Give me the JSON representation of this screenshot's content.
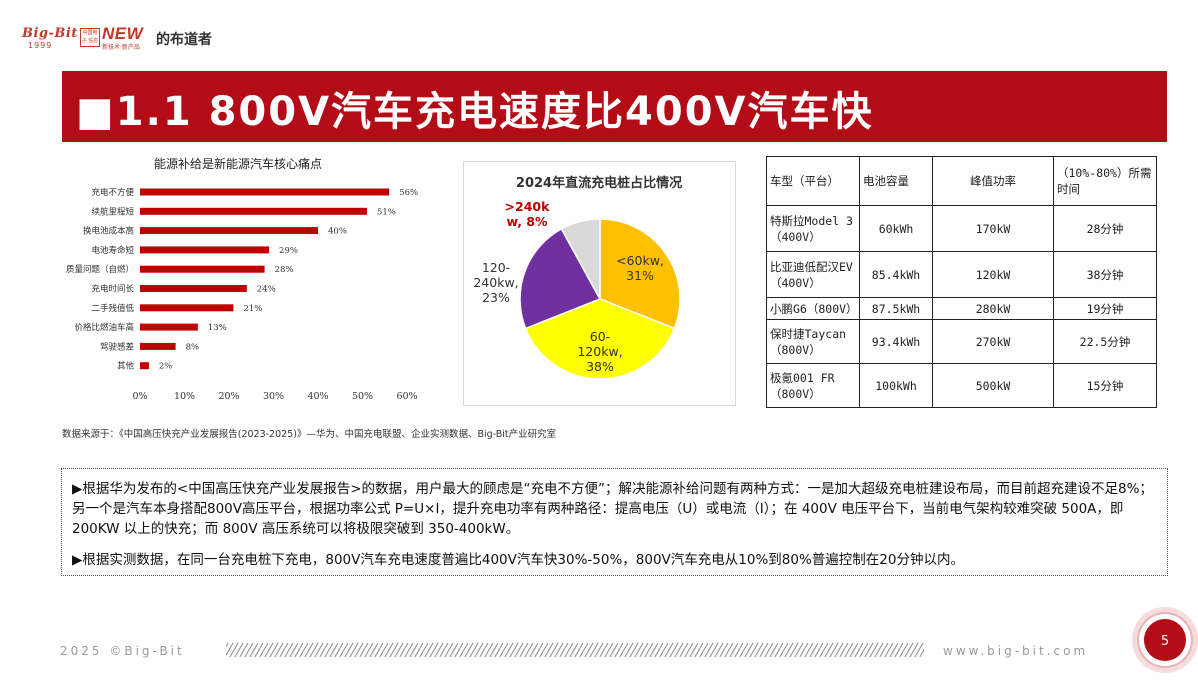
{
  "logo": {
    "brand": "Big-Bit",
    "year": "1999",
    "box_text": "中国电子 信息业",
    "new_text": "NEW",
    "new_sub": "新技术·新产品",
    "tagline": "的布道者"
  },
  "title": "■1.1 800V汽车充电速度比400V汽车快",
  "bar_chart": {
    "title": "能源补给是新能源汽车核心痛点",
    "type": "bar",
    "orientation": "horizontal",
    "categories": [
      "充电不方便",
      "续航里程短",
      "换电池成本高",
      "电池寿命短",
      "质量问题（自燃）",
      "充电时间长",
      "二手残值低",
      "价格比燃油车高",
      "驾驶感差",
      "其他"
    ],
    "values": [
      56,
      51,
      40,
      29,
      28,
      24,
      21,
      13,
      8,
      2
    ],
    "value_labels": [
      "56%",
      "51%",
      "40%",
      "29%",
      "28%",
      "24%",
      "21%",
      "13%",
      "8%",
      "2%"
    ],
    "xlim": [
      0,
      60
    ],
    "x_ticks": [
      "0%",
      "10%",
      "20%",
      "30%",
      "40%",
      "50%",
      "60%"
    ],
    "color": "#c00000"
  },
  "pie_chart": {
    "title": "2024年直流充电桩占比情况",
    "type": "pie",
    "slices": [
      {
        "label_lines": [
          "<60kw,",
          "31%"
        ],
        "value": 31,
        "color": "#ffc000"
      },
      {
        "label_lines": [
          "60-",
          "120kw,",
          "38%"
        ],
        "value": 38,
        "color": "#ffff00"
      },
      {
        "label_lines": [
          "120-",
          "240kw,",
          "23%"
        ],
        "value": 23,
        "color": "#7030a0"
      },
      {
        "label_lines": [
          ">240k",
          "w, 8%"
        ],
        "value": 8,
        "color": "#d9d9d9"
      }
    ]
  },
  "table": {
    "headers": [
      "车型（平台）",
      "电池容量",
      "峰值功率",
      "（10%-80%）所需时间"
    ],
    "rows": [
      [
        "特斯拉Model 3（400V）",
        "60kWh",
        "170kW",
        "28分钟"
      ],
      [
        "比亚迪低配汉EV（400V）",
        "85.4kWh",
        "120kW",
        "38分钟"
      ],
      [
        "小鹏G6（800V）",
        "87.5kWh",
        "280kW",
        "19分钟"
      ],
      [
        "保时捷Taycan（800V）",
        "93.4kWh",
        "270kW",
        "22.5分钟"
      ],
      [
        "极氪001 FR（800V）",
        "100kWh",
        "500kW",
        "15分钟"
      ]
    ]
  },
  "source": "数据来源于：《中国高压快充产业发展报告(2023-2025)》—华为、中国充电联盟、企业实测数据、Big-Bit产业研究室",
  "paragraphs": [
    "▶根据华为发布的<中国高压快充产业发展报告>的数据，用户最大的顾虑是“充电不方便”；解决能源补给问题有两种方式：一是加大超级充电桩建设布局，而目前超充建设不足8%；另一个是汽车本身搭配800V高压平台，根据功率公式 P=U×I，提升充电功率有两种路径：提高电压（U）或电流（I）；在 400V 电压平台下，当前电气架构较难突破 500A，即 200KW 以上的快充；而 800V 高压系统可以将极限突破到 350-400kW。",
    "▶根据实测数据，在同一台充电桩下充电，800V汽车充电速度普遍比400V汽车快30%-50%，800V汽车充电从10%到80%普遍控制在20分钟以内。"
  ],
  "footer": {
    "left": "2025 ©Big-Bit",
    "right": "www.big-bit.com",
    "page_number": "5"
  },
  "colors": {
    "brand_red": "#b40c16",
    "bar_red": "#c00000"
  }
}
